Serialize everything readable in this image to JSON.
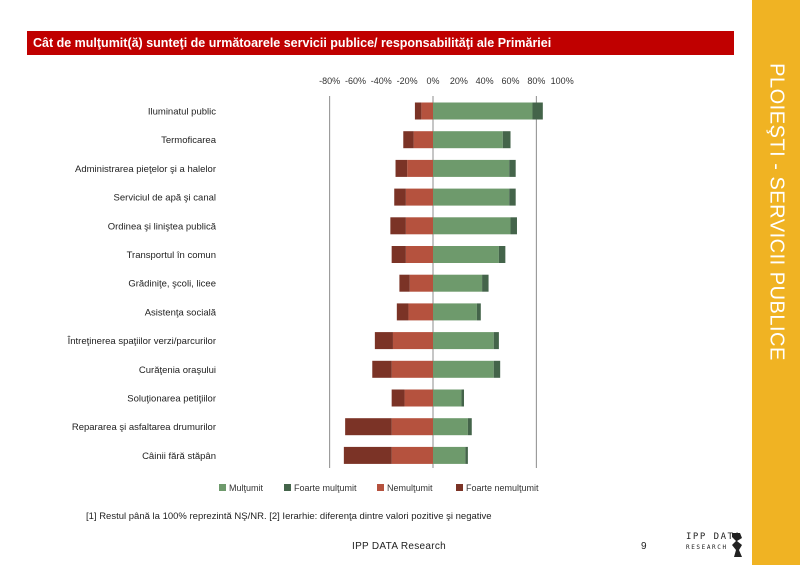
{
  "slide": {
    "side_title": "PLOIEŞTI - SERVICII PUBLICE",
    "footnote": "[1] Restul până la 100% reprezintă NŞ/NR. [2] Ierarhie: diferenţa dintre valori pozitive şi negative",
    "footer_source": "IPP DATA Research",
    "page_number": "9",
    "logo_line1": "IPP DATA",
    "logo_line2": "RESEARCH",
    "colors": {
      "title_bar": "#c00000",
      "side_band": "#f0b323",
      "multumit": "#6e9a6c",
      "foarte_multumit": "#44644a",
      "nemultumit": "#b5523e",
      "foarte_nemultumit": "#7b3326"
    }
  },
  "chart_data": {
    "type": "bar",
    "orientation": "horizontal",
    "stacked": true,
    "title": "Cât de mulţumit(ă) sunteţi de următoarele servicii publice/ responsabilităţi ale Primăriei",
    "xlim": [
      -80,
      100
    ],
    "xticks": [
      "-80%",
      "-60%",
      "-40%",
      "-20%",
      "0%",
      "20%",
      "40%",
      "60%",
      "80%",
      "100%"
    ],
    "xtick_values": [
      -80,
      -60,
      -40,
      -20,
      0,
      20,
      40,
      60,
      80,
      100
    ],
    "gridlines_at": [
      -80,
      0,
      80
    ],
    "legend_position": "bottom",
    "categories": [
      "Iluminatul public",
      "Termoficarea",
      "Administrarea pieţelor şi a halelor",
      "Serviciul de apă şi canal",
      "Ordinea şi liniştea publică",
      "Transportul în comun",
      "Grădiniţe, şcoli, licee",
      "Asistenţa socială",
      "Întreţinerea spaţiilor verzi/parcurilor",
      "Curăţenia oraşului",
      "Soluţionarea petiţiilor",
      "Repararea şi asfaltarea drumurilor",
      "Câinii fără stăpân"
    ],
    "series": [
      {
        "name": "Mulţumit",
        "values": [
          77,
          54,
          59,
          59,
          60,
          51,
          38,
          34,
          47,
          47,
          22,
          27,
          25
        ]
      },
      {
        "name": "Foarte mulţumit",
        "values": [
          8,
          6,
          5,
          5,
          5,
          5,
          5,
          3,
          4,
          5,
          2,
          3,
          2
        ]
      },
      {
        "name": "Nemulţumit",
        "values": [
          -9,
          -15,
          -20,
          -21,
          -21,
          -21,
          -18,
          -19,
          -31,
          -32,
          -22,
          -32,
          -32
        ]
      },
      {
        "name": "Foarte nemulţumit",
        "values": [
          -5,
          -8,
          -9,
          -9,
          -12,
          -11,
          -8,
          -9,
          -14,
          -15,
          -10,
          -36,
          -37
        ]
      }
    ]
  }
}
